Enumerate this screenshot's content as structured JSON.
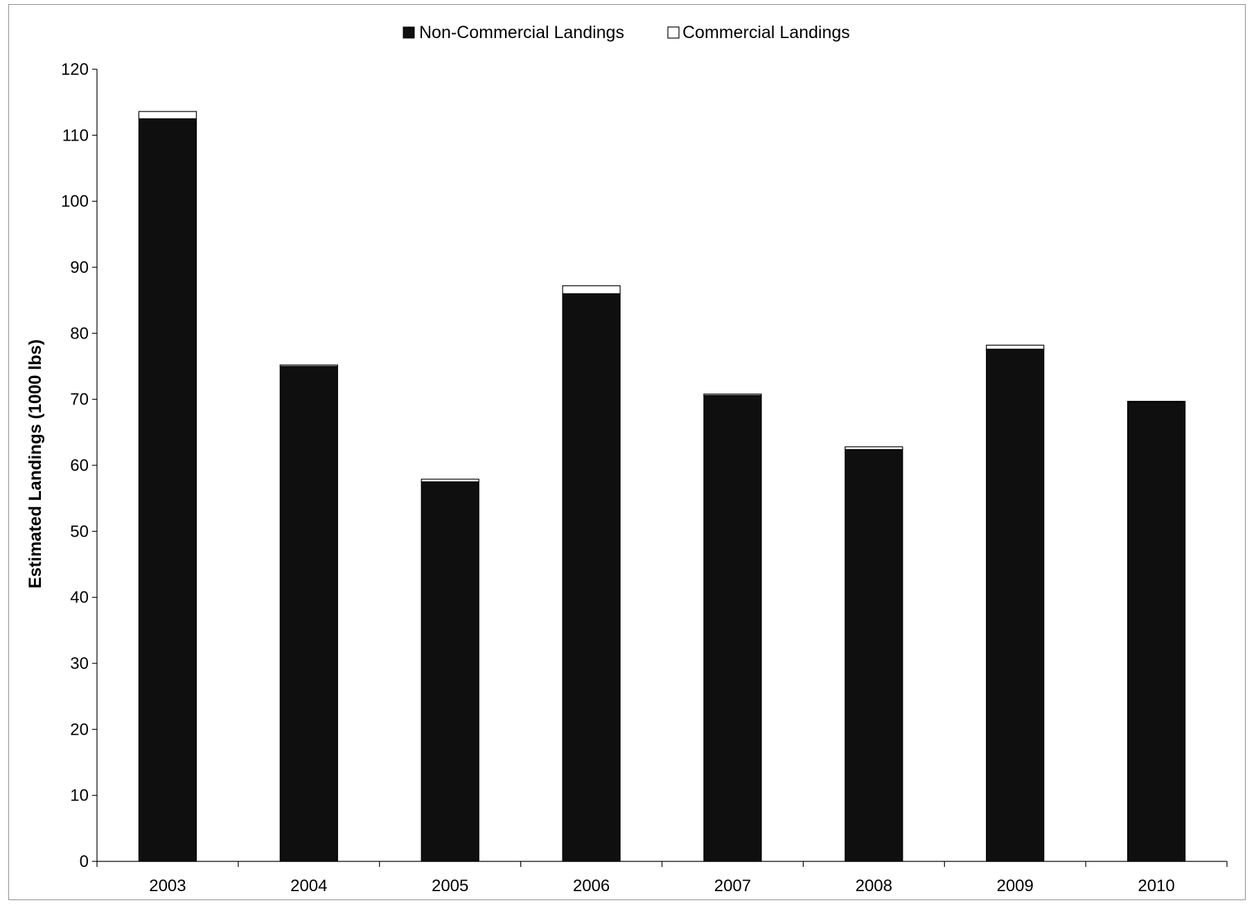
{
  "chart_data": {
    "type": "bar",
    "stacked": true,
    "title": "",
    "xlabel": "",
    "ylabel": "Estimated Landings (1000 lbs)",
    "ylim": [
      0,
      120
    ],
    "yticks": [
      "0",
      "10",
      "20",
      "30",
      "40",
      "50",
      "60",
      "70",
      "80",
      "90",
      "100",
      "110",
      "120"
    ],
    "grid": false,
    "legend_position": "top-center",
    "categories": [
      "2003",
      "2004",
      "2005",
      "2006",
      "2007",
      "2008",
      "2009",
      "2010"
    ],
    "series": [
      {
        "name": "Non-Commercial Landings",
        "color": "#0f0f0f",
        "values": [
          112.5,
          75.0,
          57.5,
          86.0,
          70.6,
          62.4,
          77.6,
          69.6
        ]
      },
      {
        "name": "Commercial Landings",
        "color": "#ffffff",
        "values": [
          1.1,
          0.2,
          0.4,
          1.2,
          0.2,
          0.4,
          0.6,
          0.1
        ]
      }
    ]
  }
}
